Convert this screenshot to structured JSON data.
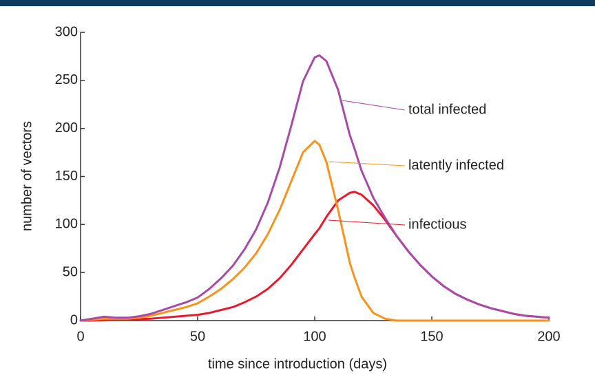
{
  "chart_data": {
    "type": "line",
    "xlabel": "time since introduction (days)",
    "ylabel": "number of vectors",
    "x": [
      0,
      5,
      10,
      15,
      20,
      25,
      30,
      35,
      40,
      45,
      50,
      55,
      60,
      65,
      70,
      75,
      80,
      85,
      90,
      95,
      100,
      102,
      105,
      110,
      115,
      117,
      120,
      125,
      130,
      135,
      140,
      145,
      150,
      155,
      160,
      165,
      170,
      175,
      180,
      185,
      190,
      195,
      200
    ],
    "series": [
      {
        "name": "total infected",
        "color": "#a64ca6",
        "values": [
          0,
          2,
          4,
          3,
          3,
          4.5,
          7,
          11,
          15,
          19,
          24,
          33,
          44,
          57,
          74,
          95,
          123,
          159,
          203,
          249,
          274,
          276,
          270,
          240,
          193,
          179,
          156,
          128,
          107,
          88,
          72,
          58,
          46,
          36,
          28,
          22,
          17,
          13,
          10,
          7,
          5,
          4,
          3
        ]
      },
      {
        "name": "latently infected",
        "color": "#f7931e",
        "values": [
          0,
          1,
          2,
          2,
          2,
          3,
          5,
          8,
          11,
          14,
          18,
          25,
          33,
          43,
          55,
          70,
          90,
          115,
          145,
          175,
          187,
          183,
          165,
          115,
          60,
          45,
          25,
          8,
          2,
          0,
          0,
          0,
          0,
          0,
          0,
          0,
          0,
          0,
          0,
          0,
          0,
          0,
          0
        ]
      },
      {
        "name": "infectious",
        "color": "#e8192c",
        "values": [
          0,
          0,
          0.5,
          1,
          1,
          1.5,
          2,
          3,
          4,
          5,
          6,
          8,
          11,
          14,
          19,
          25,
          33,
          44,
          58,
          74,
          90,
          96,
          108,
          125,
          133,
          134,
          131,
          120,
          105,
          88,
          72,
          58,
          46,
          36,
          28,
          22,
          17,
          13,
          10,
          7,
          5,
          4,
          3
        ]
      }
    ],
    "xlim": [
      0,
      200
    ],
    "xticks": [
      0,
      50,
      100,
      150,
      200
    ],
    "ylim": [
      0,
      300
    ],
    "yticks": [
      0,
      50,
      100,
      150,
      200,
      250,
      300
    ]
  }
}
